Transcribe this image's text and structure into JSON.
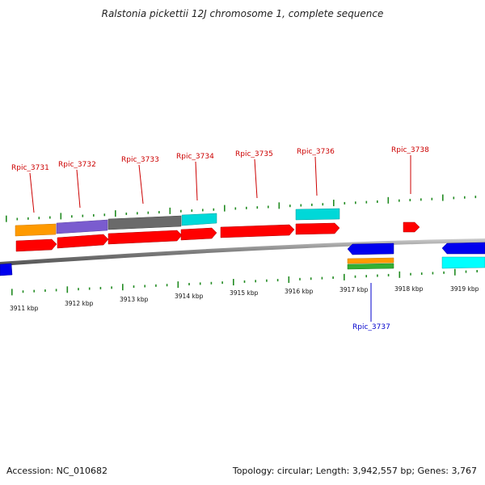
{
  "title": "Ralstonia pickettii 12J chromosome 1, complete sequence",
  "footer": {
    "accession": "Accession: NC_010682",
    "summary": "Topology: circular; Length: 3,942,557 bp; Genes: 3,767"
  },
  "colors": {
    "backbone": "#8a8a8a",
    "forward_cds": "#ff0000",
    "reverse_cds": "#0000ee",
    "cyan_feature": "#00d8d8",
    "orange_feature": "#ff9a00",
    "purple_feature": "#7a5ccf",
    "gray_feature": "#6a6a6a",
    "green_feature": "#33b033",
    "tick": "#228b22",
    "forward_label": "#cc0000",
    "reverse_label": "#0000cc"
  },
  "ticks": [
    "3911 kbp",
    "3912 kbp",
    "3913 kbp",
    "3914 kbp",
    "3915 kbp",
    "3916 kbp",
    "3917 kbp",
    "3918 kbp",
    "3919 kbp"
  ],
  "genes_forward": [
    "Rpic_3731",
    "Rpic_3732",
    "Rpic_3733",
    "Rpic_3734",
    "Rpic_3735",
    "Rpic_3736",
    "Rpic_3738"
  ],
  "genes_reverse": [
    "Rpic_3737"
  ]
}
